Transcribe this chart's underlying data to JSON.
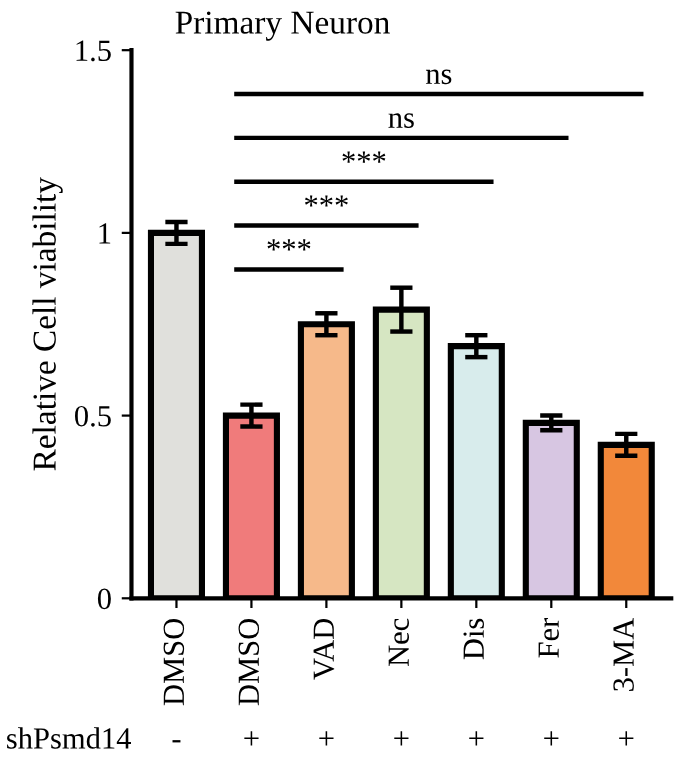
{
  "chart_data": {
    "type": "bar",
    "title": "Primary Neuron",
    "ylabel": "Relative Cell viability",
    "categories": [
      "DMSO",
      "DMSO",
      "VAD",
      "Nec",
      "Dis",
      "Fer",
      "3-MA"
    ],
    "values": [
      1.0,
      0.5,
      0.75,
      0.79,
      0.69,
      0.48,
      0.42
    ],
    "errors": [
      0.03,
      0.03,
      0.03,
      0.06,
      0.03,
      0.02,
      0.03
    ],
    "colors": [
      "#e0e0dc",
      "#f07b7b",
      "#f6b98a",
      "#d6e6c2",
      "#d8ecec",
      "#d7c6e2",
      "#f2883a"
    ],
    "ylim": [
      0,
      1.5
    ],
    "yticks": [
      0,
      {
        "value": 0.5,
        "label": "0.5"
      },
      1,
      {
        "value": 1.5,
        "label": "1.5"
      }
    ],
    "grid": false,
    "annotations": [
      "***",
      "***",
      "***",
      "ns",
      "ns",
      "shPsmd14",
      "-",
      "+",
      "+",
      "+",
      "+",
      "+",
      "+"
    ]
  }
}
